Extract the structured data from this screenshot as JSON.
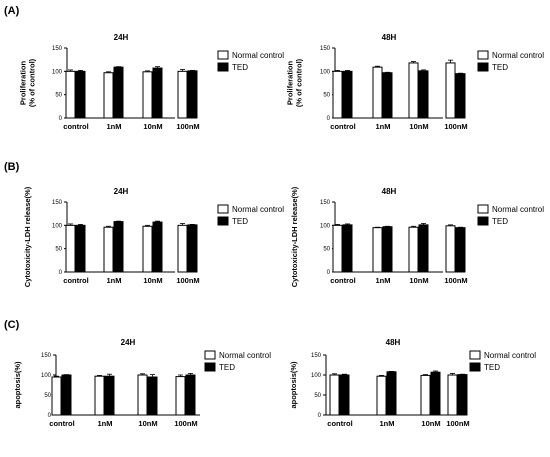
{
  "panel_labels": [
    "(A)",
    "(B)",
    "(C)"
  ],
  "chart_data": [
    {
      "type": "bar",
      "panel": "(A)",
      "title": "24H",
      "ylabel_lines": [
        "Proliferation",
        "(% of control)"
      ],
      "categories": [
        "control",
        "1nM",
        "10nM",
        "100nM"
      ],
      "ylim": [
        0,
        150
      ],
      "yticks": [
        "0",
        "50",
        "100",
        "150"
      ],
      "legend_position": "top-right",
      "series": [
        {
          "name": "Normal control",
          "color": "#ffffff",
          "values": [
            100,
            97,
            99,
            100
          ],
          "errors": [
            3,
            2,
            2,
            4
          ]
        },
        {
          "name": "TED",
          "color": "#000000",
          "values": [
            100,
            109,
            107,
            101
          ],
          "errors": [
            2,
            1,
            3,
            1
          ]
        }
      ]
    },
    {
      "type": "bar",
      "panel": "(A)",
      "title": "48H",
      "ylabel_lines": [
        "Proliferation",
        "(% of control)"
      ],
      "categories": [
        "control",
        "1nM",
        "10nM",
        "100nM"
      ],
      "ylim": [
        0,
        150
      ],
      "yticks": [
        "0",
        "50",
        "100",
        "150"
      ],
      "legend_position": "top-right",
      "series": [
        {
          "name": "Normal control",
          "color": "#ffffff",
          "values": [
            100,
            109,
            118,
            118
          ],
          "errors": [
            2,
            2,
            3,
            6
          ]
        },
        {
          "name": "TED",
          "color": "#000000",
          "values": [
            100,
            97,
            101,
            95
          ],
          "errors": [
            2,
            1,
            2,
            1
          ]
        }
      ]
    },
    {
      "type": "bar",
      "panel": "(B)",
      "title": "24H",
      "ylabel_lines": [
        "Cytotoxicity-LDH release(%)"
      ],
      "categories": [
        "control",
        "1nM",
        "10nM",
        "100nM"
      ],
      "ylim": [
        0,
        150
      ],
      "yticks": [
        "0",
        "50",
        "100",
        "150"
      ],
      "legend_position": "top-right",
      "series": [
        {
          "name": "Normal control",
          "color": "#ffffff",
          "values": [
            100,
            96,
            98,
            100
          ],
          "errors": [
            3,
            2,
            2,
            4
          ]
        },
        {
          "name": "TED",
          "color": "#000000",
          "values": [
            100,
            108,
            107,
            101
          ],
          "errors": [
            2,
            1,
            2,
            1
          ]
        }
      ]
    },
    {
      "type": "bar",
      "panel": "(B)",
      "title": "48H",
      "ylabel_lines": [
        "Cytotoxicity-LDH release(%)"
      ],
      "categories": [
        "control",
        "1nM",
        "10nM",
        "100nM"
      ],
      "ylim": [
        0,
        150
      ],
      "yticks": [
        "0",
        "50",
        "100",
        "150"
      ],
      "legend_position": "top-right",
      "series": [
        {
          "name": "Normal control",
          "color": "#ffffff",
          "values": [
            100,
            95,
            96,
            99
          ],
          "errors": [
            2,
            1,
            2,
            2
          ]
        },
        {
          "name": "TED",
          "color": "#000000",
          "values": [
            101,
            97,
            101,
            95
          ],
          "errors": [
            2,
            1,
            3,
            1
          ]
        }
      ]
    },
    {
      "type": "bar",
      "panel": "(C)",
      "title": "24H",
      "ylabel_lines": [
        "apoptosis(%)"
      ],
      "categories": [
        "control",
        "1nM",
        "10nM",
        "100nM"
      ],
      "ylim": [
        0,
        150
      ],
      "yticks": [
        "0",
        "50",
        "100",
        "150"
      ],
      "legend_position": "top-right",
      "series": [
        {
          "name": "Normal control",
          "color": "#ffffff",
          "values": [
            95,
            97,
            100,
            96
          ],
          "errors": [
            2,
            2,
            3,
            4
          ]
        },
        {
          "name": "TED",
          "color": "#000000",
          "values": [
            100,
            97,
            95,
            100
          ],
          "errors": [
            1,
            5,
            6,
            4
          ]
        }
      ]
    },
    {
      "type": "bar",
      "panel": "(C)",
      "title": "48H",
      "ylabel_lines": [
        "apoptosis(%)"
      ],
      "categories": [
        "control",
        "1nM",
        "10nM",
        "100nM"
      ],
      "ylim": [
        0,
        150
      ],
      "yticks": [
        "0",
        "50",
        "100",
        "150"
      ],
      "legend_position": "top-right",
      "series": [
        {
          "name": "Normal control",
          "color": "#ffffff",
          "values": [
            100,
            97,
            99,
            100
          ],
          "errors": [
            3,
            2,
            2,
            4
          ]
        },
        {
          "name": "TED",
          "color": "#000000",
          "values": [
            100,
            108,
            107,
            101
          ],
          "errors": [
            2,
            1,
            3,
            1
          ]
        }
      ]
    }
  ]
}
